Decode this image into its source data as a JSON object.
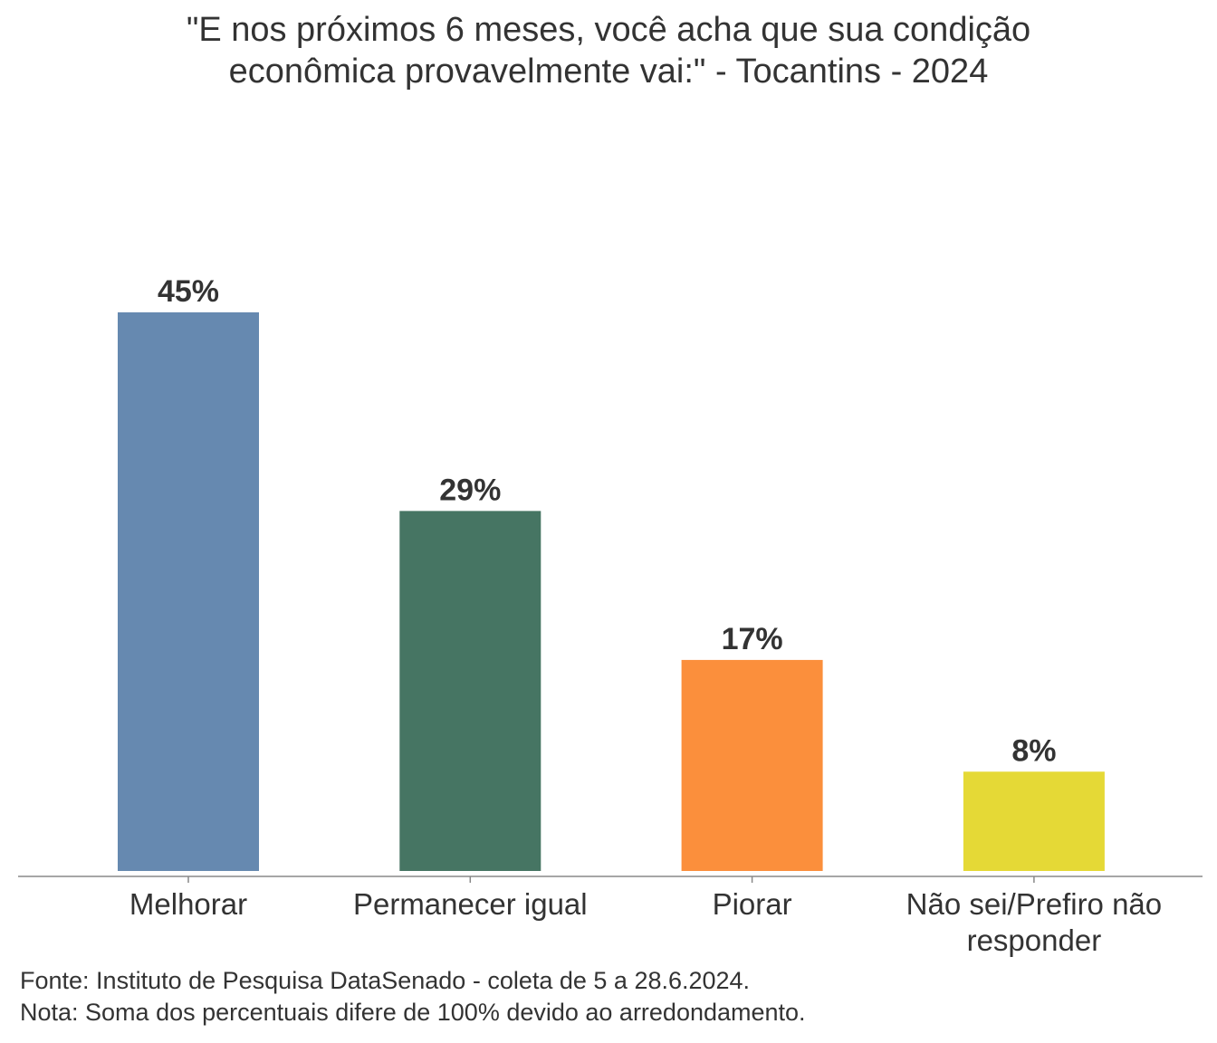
{
  "chart_data": {
    "type": "bar",
    "title_lines": [
      "\"E nos próximos 6 meses, você acha que sua condição",
      "econômica provavelmente vai:\" - Tocantins - 2024"
    ],
    "categories": [
      [
        "Melhorar"
      ],
      [
        "Permanecer igual"
      ],
      [
        "Piorar"
      ],
      [
        "Não sei/Prefiro não",
        "responder"
      ]
    ],
    "values": [
      45,
      29,
      17,
      8
    ],
    "labels": [
      "45%",
      "29%",
      "17%",
      "8%"
    ],
    "colors": [
      "#6689B0",
      "#467563",
      "#FB8F3C",
      "#E5D936"
    ],
    "ylim": [
      0,
      45
    ],
    "grid": false,
    "xlabel": "",
    "ylabel": ""
  },
  "footer": {
    "source": "Fonte: Instituto de Pesquisa DataSenado - coleta de 5 a 28.6.2024.",
    "note": "Nota: Soma dos percentuais difere de 100% devido ao arredondamento."
  }
}
